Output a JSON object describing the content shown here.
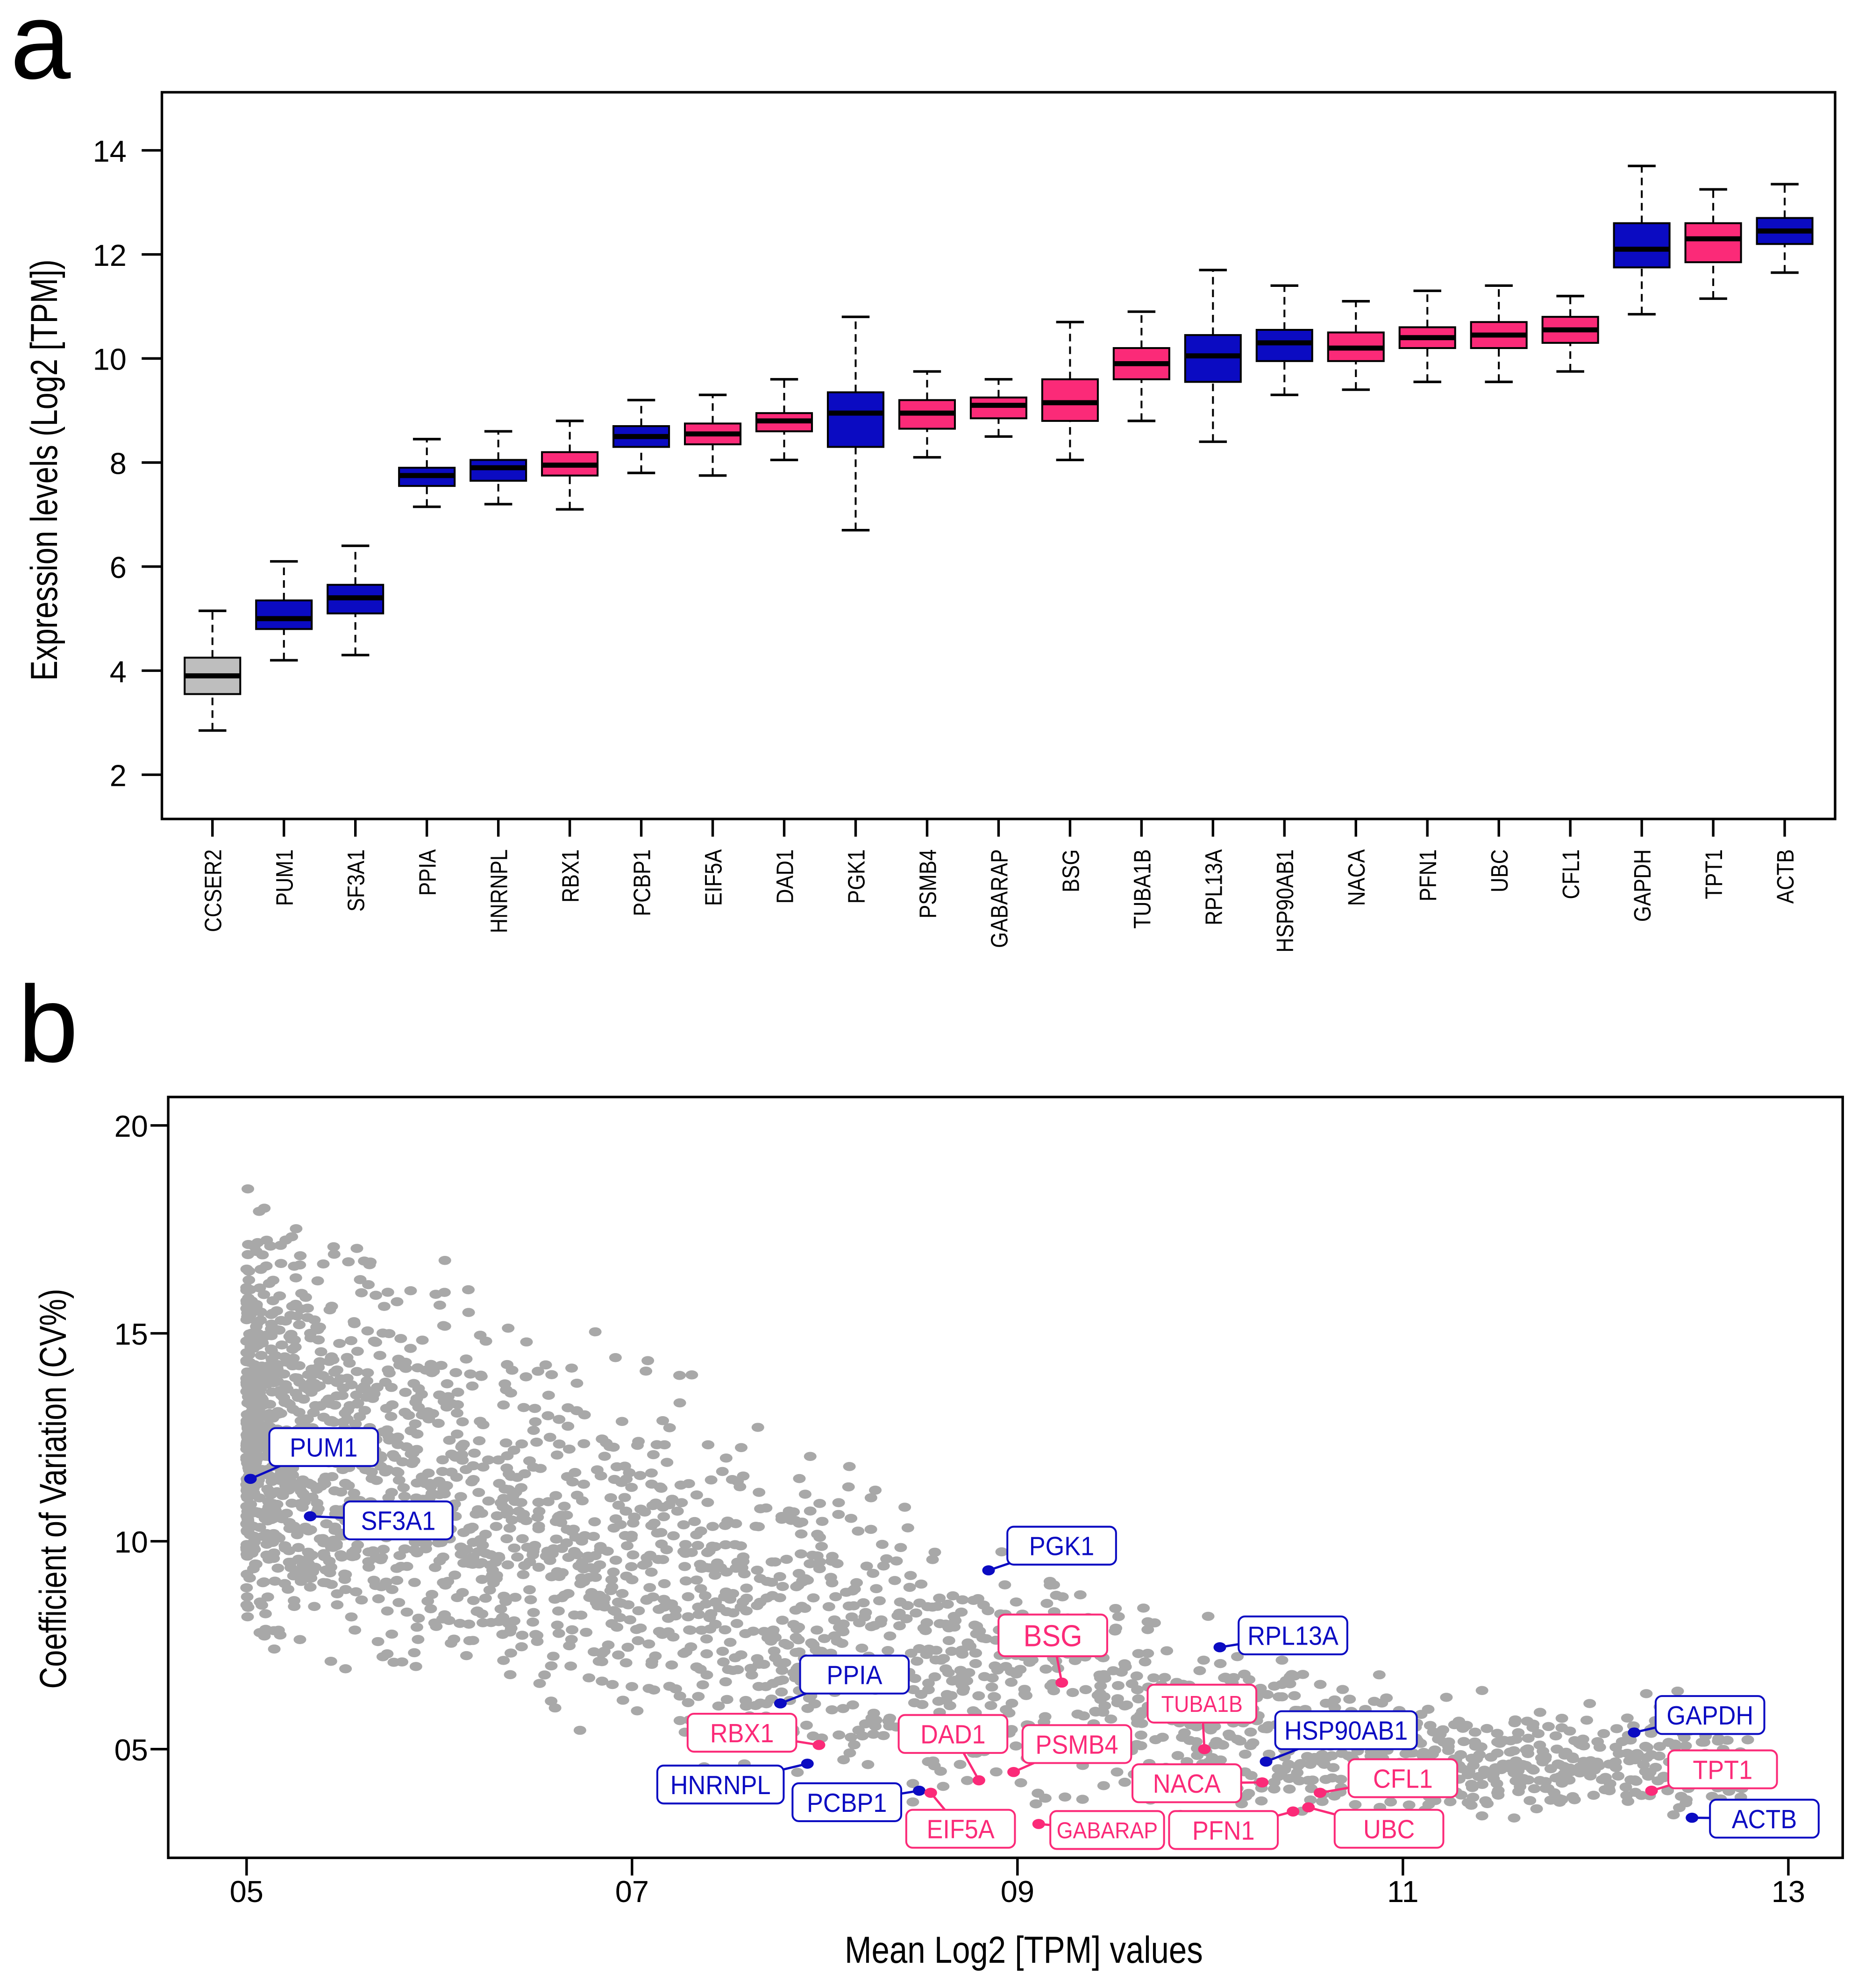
{
  "colors": {
    "blue": "#0b0bc2",
    "pink": "#fb2a78",
    "grey": "#bebebe",
    "points": "#a8a8a8"
  },
  "chart_data": [
    {
      "type": "boxplot",
      "panel": "a",
      "ylabel": "Expression levels (Log2 [TPM])",
      "xlabel": "",
      "ylim": [
        1.2,
        15.1
      ],
      "yticks": [
        2,
        4,
        6,
        8,
        10,
        12,
        14
      ],
      "grid": false,
      "categories": [
        "CCSER2",
        "PUM1",
        "SF3A1",
        "PPIA",
        "HNRNPL",
        "RBX1",
        "PCBP1",
        "EIF5A",
        "DAD1",
        "PGK1",
        "PSMB4",
        "GABARAP",
        "BSG",
        "TUBA1B",
        "RPL13A",
        "HSP90AB1",
        "NACA",
        "PFN1",
        "UBC",
        "CFL1",
        "GAPDH",
        "TPT1",
        "ACTB"
      ],
      "groups": [
        "grey",
        "blue",
        "blue",
        "blue",
        "blue",
        "pink",
        "blue",
        "pink",
        "pink",
        "blue",
        "pink",
        "pink",
        "pink",
        "pink",
        "blue",
        "blue",
        "pink",
        "pink",
        "pink",
        "pink",
        "blue",
        "pink",
        "blue"
      ],
      "stats": [
        [
          2.85,
          3.55,
          3.9,
          4.25,
          5.15
        ],
        [
          4.2,
          4.8,
          5.0,
          5.35,
          6.1
        ],
        [
          4.3,
          5.1,
          5.4,
          5.65,
          6.4
        ],
        [
          7.15,
          7.55,
          7.75,
          7.9,
          8.45
        ],
        [
          7.2,
          7.65,
          7.9,
          8.05,
          8.6
        ],
        [
          7.1,
          7.75,
          7.95,
          8.2,
          8.8
        ],
        [
          7.8,
          8.3,
          8.5,
          8.7,
          9.2
        ],
        [
          7.75,
          8.35,
          8.55,
          8.75,
          9.3
        ],
        [
          8.05,
          8.6,
          8.8,
          8.95,
          9.6
        ],
        [
          6.7,
          8.3,
          8.95,
          9.35,
          10.8
        ],
        [
          8.1,
          8.65,
          8.95,
          9.2,
          9.75
        ],
        [
          8.5,
          8.85,
          9.1,
          9.25,
          9.6
        ],
        [
          8.05,
          8.8,
          9.15,
          9.6,
          10.7
        ],
        [
          8.8,
          9.6,
          9.9,
          10.2,
          10.9
        ],
        [
          8.4,
          9.55,
          10.05,
          10.45,
          11.7
        ],
        [
          9.3,
          9.95,
          10.3,
          10.55,
          11.4
        ],
        [
          9.4,
          9.95,
          10.2,
          10.5,
          11.1
        ],
        [
          9.55,
          10.2,
          10.4,
          10.6,
          11.3
        ],
        [
          9.55,
          10.2,
          10.45,
          10.7,
          11.4
        ],
        [
          9.75,
          10.3,
          10.55,
          10.8,
          11.2
        ],
        [
          10.85,
          11.75,
          12.1,
          12.6,
          13.7
        ],
        [
          11.15,
          11.85,
          12.3,
          12.6,
          13.25
        ],
        [
          11.65,
          12.2,
          12.45,
          12.7,
          13.35
        ]
      ]
    },
    {
      "type": "scatter",
      "panel": "b",
      "xlabel": "Mean Log2 [TPM] values",
      "ylabel": "Coefficient of Variation (CV%)",
      "xlim": [
        4.6,
        13.3
      ],
      "ylim": [
        2.4,
        20.7
      ],
      "xticks": [
        5,
        7,
        9,
        11,
        13
      ],
      "xtick_labels": [
        "05",
        "07",
        "09",
        "11",
        "13"
      ],
      "yticks": [
        5,
        10,
        15,
        20
      ],
      "ytick_labels": [
        "05",
        "10",
        "15",
        "20"
      ],
      "grid": false,
      "background": {
        "n": 2600,
        "x_range": [
          5.0,
          12.8
        ],
        "cv_upper_at_x5": 20,
        "cv_lower_min": 3
      },
      "labeled_points": [
        {
          "gene": "PUM1",
          "x": 5.02,
          "y": 11.5,
          "group": "blue"
        },
        {
          "gene": "SF3A1",
          "x": 5.33,
          "y": 10.6,
          "group": "blue"
        },
        {
          "gene": "PGK1",
          "x": 8.85,
          "y": 9.3,
          "group": "blue"
        },
        {
          "gene": "BSG",
          "x": 9.23,
          "y": 6.6,
          "group": "pink"
        },
        {
          "gene": "RPL13A",
          "x": 10.05,
          "y": 7.45,
          "group": "blue"
        },
        {
          "gene": "PPIA",
          "x": 7.77,
          "y": 6.1,
          "group": "blue"
        },
        {
          "gene": "TUBA1B",
          "x": 9.97,
          "y": 5.0,
          "group": "pink"
        },
        {
          "gene": "HSP90AB1",
          "x": 10.29,
          "y": 4.7,
          "group": "blue"
        },
        {
          "gene": "GAPDH",
          "x": 12.2,
          "y": 5.4,
          "group": "blue"
        },
        {
          "gene": "RBX1",
          "x": 7.97,
          "y": 5.1,
          "group": "pink"
        },
        {
          "gene": "DAD1",
          "x": 8.8,
          "y": 4.25,
          "group": "pink"
        },
        {
          "gene": "PSMB4",
          "x": 8.98,
          "y": 4.45,
          "group": "pink"
        },
        {
          "gene": "HNRNPL",
          "x": 7.91,
          "y": 4.65,
          "group": "blue"
        },
        {
          "gene": "PCBP1",
          "x": 8.49,
          "y": 4.0,
          "group": "blue"
        },
        {
          "gene": "EIF5A",
          "x": 8.55,
          "y": 3.95,
          "group": "pink"
        },
        {
          "gene": "GABARAP",
          "x": 9.11,
          "y": 3.2,
          "group": "pink"
        },
        {
          "gene": "NACA",
          "x": 10.27,
          "y": 4.2,
          "group": "pink"
        },
        {
          "gene": "PFN1",
          "x": 10.43,
          "y": 3.5,
          "group": "pink"
        },
        {
          "gene": "UBC",
          "x": 10.51,
          "y": 3.6,
          "group": "pink"
        },
        {
          "gene": "CFL1",
          "x": 10.57,
          "y": 3.95,
          "group": "pink"
        },
        {
          "gene": "TPT1",
          "x": 12.29,
          "y": 4.0,
          "group": "pink"
        },
        {
          "gene": "ACTB",
          "x": 12.5,
          "y": 3.35,
          "group": "blue"
        }
      ]
    }
  ],
  "panels": {
    "a": "a",
    "b": "b"
  }
}
